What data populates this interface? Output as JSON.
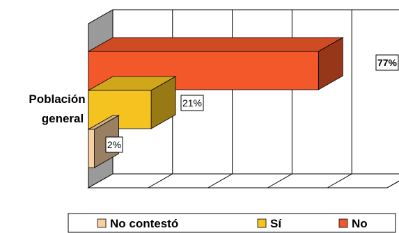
{
  "chart_data": {
    "type": "bar",
    "orientation": "horizontal",
    "style": "3d-stacked-series",
    "categories": [
      "Población general"
    ],
    "category_lines": [
      "Población",
      "general"
    ],
    "series": [
      {
        "name": "No contestó",
        "values": [
          2
        ],
        "label": "2%",
        "color": "#F7CFA0"
      },
      {
        "name": "Sí",
        "values": [
          21
        ],
        "label": "21%",
        "color": "#F5C320"
      },
      {
        "name": "No",
        "values": [
          77
        ],
        "label": "77%",
        "color": "#F2582A"
      }
    ],
    "xlim": [
      0,
      100
    ],
    "grid": true,
    "legend_position": "bottom"
  }
}
